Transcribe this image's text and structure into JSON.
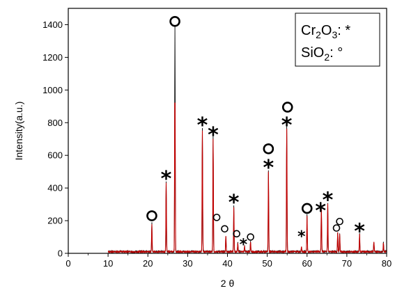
{
  "chart_data": {
    "type": "line",
    "xlabel": "2 θ",
    "ylabel": "Intensity(a.u.)",
    "xlim": [
      0,
      80
    ],
    "ylim": [
      0,
      1500
    ],
    "x_ticks": [
      0,
      10,
      20,
      30,
      40,
      50,
      60,
      70,
      80
    ],
    "y_ticks": [
      0,
      200,
      400,
      600,
      800,
      1000,
      1200,
      1400
    ],
    "grid": false,
    "legend_placement": "top-right",
    "legend": {
      "line1": {
        "prefix": "Cr",
        "sub1": "2",
        "mid": "O",
        "sub2": "3",
        "suffix": ": *"
      },
      "line2": {
        "prefix": "SiO",
        "sub1": "2",
        "suffix": ": °"
      }
    },
    "colors": {
      "red_series": "#c00000",
      "black_series": "#000000"
    },
    "series": [
      {
        "peaks": [
          {
            "x": 21.0,
            "y": 175
          },
          {
            "x": 24.6,
            "y": 430
          },
          {
            "x": 26.8,
            "y": 1380
          },
          {
            "x": 33.7,
            "y": 760
          },
          {
            "x": 36.4,
            "y": 710
          },
          {
            "x": 39.6,
            "y": 95
          },
          {
            "x": 41.6,
            "y": 280
          },
          {
            "x": 42.6,
            "y": 55
          },
          {
            "x": 44.3,
            "y": 35
          },
          {
            "x": 45.8,
            "y": 60
          },
          {
            "x": 50.3,
            "y": 500
          },
          {
            "x": 54.9,
            "y": 770
          },
          {
            "x": 58.6,
            "y": 30
          },
          {
            "x": 60.0,
            "y": 225
          },
          {
            "x": 63.6,
            "y": 270
          },
          {
            "x": 65.2,
            "y": 300
          },
          {
            "x": 67.7,
            "y": 120
          },
          {
            "x": 68.2,
            "y": 110
          },
          {
            "x": 73.2,
            "y": 110
          },
          {
            "x": 76.8,
            "y": 60
          },
          {
            "x": 79.2,
            "y": 55
          }
        ]
      }
    ],
    "annotations": [
      {
        "symbol": "o",
        "x": 21.0,
        "y": 230,
        "size": "large"
      },
      {
        "symbol": "*",
        "x": 24.6,
        "y": 470,
        "size": "large"
      },
      {
        "symbol": "o",
        "x": 26.8,
        "y": 1420,
        "size": "large"
      },
      {
        "symbol": "*",
        "x": 33.7,
        "y": 800,
        "size": "large"
      },
      {
        "symbol": "*",
        "x": 36.4,
        "y": 740,
        "size": "large"
      },
      {
        "symbol": "o",
        "x": 37.3,
        "y": 220,
        "size": "small"
      },
      {
        "symbol": "o",
        "x": 39.3,
        "y": 150,
        "size": "small"
      },
      {
        "symbol": "*",
        "x": 41.6,
        "y": 325,
        "size": "large"
      },
      {
        "symbol": "o",
        "x": 42.3,
        "y": 120,
        "size": "small"
      },
      {
        "symbol": "*",
        "x": 44.0,
        "y": 65,
        "size": "medium"
      },
      {
        "symbol": "o",
        "x": 45.8,
        "y": 100,
        "size": "small"
      },
      {
        "symbol": "o",
        "x": 50.3,
        "y": 640,
        "size": "large"
      },
      {
        "symbol": "*",
        "x": 50.3,
        "y": 540,
        "size": "large"
      },
      {
        "symbol": "o",
        "x": 55.1,
        "y": 895,
        "size": "large"
      },
      {
        "symbol": "*",
        "x": 54.9,
        "y": 800,
        "size": "large"
      },
      {
        "symbol": "*",
        "x": 58.6,
        "y": 115,
        "size": "medium"
      },
      {
        "symbol": "o",
        "x": 60.0,
        "y": 275,
        "size": "large"
      },
      {
        "symbol": "*",
        "x": 63.4,
        "y": 275,
        "size": "large"
      },
      {
        "symbol": "*",
        "x": 65.2,
        "y": 340,
        "size": "large"
      },
      {
        "symbol": "o",
        "x": 67.4,
        "y": 155,
        "size": "small"
      },
      {
        "symbol": "o",
        "x": 68.2,
        "y": 195,
        "size": "small"
      },
      {
        "symbol": "*",
        "x": 73.2,
        "y": 150,
        "size": "large"
      }
    ]
  }
}
